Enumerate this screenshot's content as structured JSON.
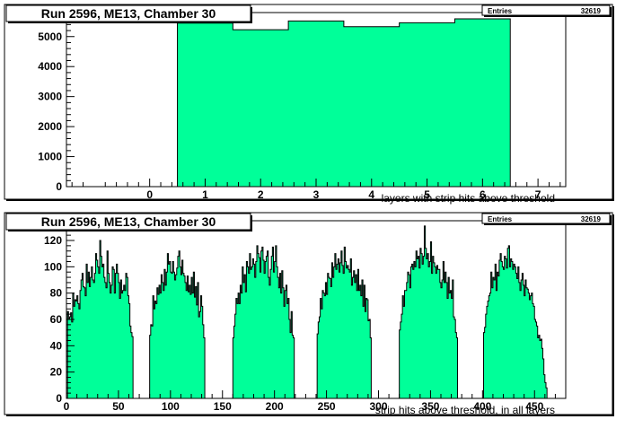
{
  "chart_data": [
    {
      "type": "bar",
      "title": "Run 2596, ME13, Chamber 30",
      "stats": {
        "label": "Entries",
        "value": "32619"
      },
      "xlabel": "layers with strip hits above threshold",
      "ylabel": "",
      "xlim": [
        -1.5,
        7.5
      ],
      "ylim": [
        0,
        5800
      ],
      "xticks": [
        0,
        1,
        2,
        3,
        4,
        5,
        6,
        7
      ],
      "yticks": [
        0,
        1000,
        2000,
        3000,
        4000,
        5000
      ],
      "categories": [
        "1",
        "2",
        "3",
        "4",
        "5",
        "6"
      ],
      "values": [
        5450,
        5230,
        5520,
        5330,
        5460,
        5590
      ],
      "fill_color": "#00ff99",
      "grid": false
    },
    {
      "type": "bar",
      "title": "Run 2596, ME13, Chamber 30",
      "stats": {
        "label": "Entries",
        "value": "32619"
      },
      "xlabel": "strip hits above threshold, in all layers",
      "ylabel": "",
      "xlim": [
        0,
        480
      ],
      "ylim": [
        0,
        135
      ],
      "xticks": [
        0,
        50,
        100,
        150,
        200,
        250,
        300,
        350,
        400,
        450
      ],
      "yticks": [
        0,
        20,
        40,
        60,
        80,
        100,
        120
      ],
      "bin_width": 1,
      "clusters": [
        {
          "start": 1,
          "values": [
            66,
            60,
            62,
            65,
            58,
            80,
            70,
            75,
            74,
            78,
            72,
            68,
            82,
            90,
            95,
            85,
            84,
            78,
            102,
            88,
            96,
            85,
            92,
            100,
            90,
            88,
            95,
            110,
            105,
            100,
            95,
            120,
            108,
            100,
            102,
            92,
            88,
            84,
            112,
            95,
            88,
            80,
            86,
            100,
            98,
            80,
            95,
            102,
            95,
            88,
            76,
            90,
            80,
            82,
            86,
            82,
            95,
            92,
            78,
            72,
            55,
            50,
            47
          ]
        },
        {
          "start": 80,
          "values": [
            48,
            56,
            55,
            78,
            68,
            74,
            72,
            84,
            79,
            86,
            80,
            94,
            88,
            82,
            98,
            86,
            96,
            110,
            102,
            104,
            96,
            95,
            104,
            96,
            90,
            94,
            99,
            108,
            112,
            100,
            94,
            105,
            95,
            93,
            88,
            82,
            93,
            81,
            86,
            79,
            92,
            80,
            96,
            77,
            85,
            71,
            88,
            62,
            66,
            78,
            70,
            56,
            46
          ]
        },
        {
          "start": 160,
          "values": [
            46,
            55,
            64,
            76,
            72,
            80,
            72,
            86,
            80,
            100,
            88,
            94,
            81,
            104,
            100,
            95,
            110,
            98,
            100,
            106,
            102,
            92,
            104,
            116,
            110,
            107,
            96,
            112,
            115,
            105,
            95,
            104,
            108,
            112,
            92,
            86,
            98,
            108,
            115,
            96,
            104,
            116,
            100,
            92,
            84,
            95,
            80,
            97,
            84,
            70,
            82,
            86,
            72,
            76,
            60,
            50,
            66,
            48,
            46
          ]
        },
        {
          "start": 241,
          "values": [
            49,
            58,
            62,
            76,
            68,
            82,
            80,
            78,
            88,
            79,
            95,
            92,
            91,
            85,
            103,
            92,
            100,
            110,
            98,
            102,
            106,
            96,
            103,
            112,
            101,
            95,
            115,
            104,
            99,
            101,
            98,
            96,
            106,
            86,
            92,
            97,
            88,
            94,
            82,
            98,
            82,
            86,
            78,
            90,
            70,
            86,
            66,
            76,
            75,
            59,
            60,
            46
          ]
        },
        {
          "start": 320,
          "values": [
            52,
            58,
            64,
            78,
            70,
            82,
            82,
            88,
            96,
            94,
            84,
            100,
            102,
            98,
            104,
            100,
            112,
            106,
            108,
            99,
            114,
            110,
            102,
            108,
            131,
            114,
            106,
            110,
            100,
            104,
            119,
            95,
            108,
            103,
            100,
            95,
            101,
            98,
            98,
            88,
            84,
            90,
            104,
            88,
            96,
            88,
            76,
            92,
            80,
            82,
            76,
            90,
            62,
            60,
            50,
            46
          ]
        },
        {
          "start": 401,
          "values": [
            50,
            54,
            64,
            70,
            74,
            78,
            80,
            96,
            84,
            92,
            90,
            102,
            82,
            96,
            93,
            105,
            110,
            104,
            100,
            98,
            108,
            106,
            99,
            114,
            116,
            100,
            106,
            104,
            98,
            102,
            100,
            95,
            91,
            100,
            88,
            82,
            90,
            95,
            86,
            78,
            90,
            84,
            83,
            80,
            75,
            78,
            80,
            72,
            70,
            60,
            58,
            55,
            46,
            48,
            44,
            45,
            38,
            30,
            18,
            12,
            8
          ]
        }
      ],
      "fill_color": "#00ff99",
      "grid": false
    }
  ]
}
